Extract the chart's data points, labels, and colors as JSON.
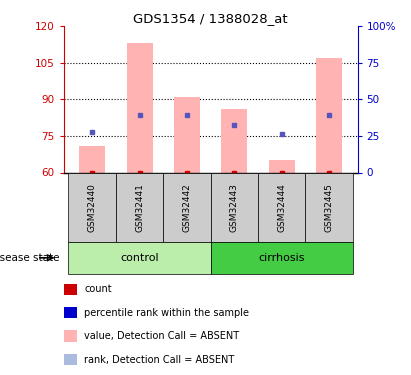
{
  "title": "GDS1354 / 1388028_at",
  "samples": [
    "GSM32440",
    "GSM32441",
    "GSM32442",
    "GSM32443",
    "GSM32444",
    "GSM32445"
  ],
  "groups": [
    "control",
    "control",
    "control",
    "cirrhosis",
    "cirrhosis",
    "cirrhosis"
  ],
  "ylim_left": [
    60,
    120
  ],
  "ylim_right": [
    0,
    100
  ],
  "yticks_left": [
    60,
    75,
    90,
    105,
    120
  ],
  "yticks_right": [
    0,
    25,
    50,
    75,
    100
  ],
  "ytick_labels_right": [
    "0",
    "25",
    "50",
    "75",
    "100%"
  ],
  "bar_bottom": 60,
  "pink_bar_tops": [
    71,
    113,
    91,
    86,
    65,
    107
  ],
  "blue_dot_y": [
    76.5,
    83.5,
    83.5,
    79.5,
    76.0,
    83.5
  ],
  "pink_bar_color": "#FFB3B3",
  "blue_dot_color": "#5555BB",
  "red_dot_color": "#CC0000",
  "control_color": "#BBEEAA",
  "cirrhosis_color": "#44CC44",
  "sample_box_color": "#CCCCCC",
  "background_color": "#FFFFFF",
  "axis_left_color": "#CC0000",
  "axis_right_color": "#0000CC",
  "bar_width": 0.55,
  "dotted_line_y": [
    75,
    90,
    105
  ],
  "legend_labels": [
    "count",
    "percentile rank within the sample",
    "value, Detection Call = ABSENT",
    "rank, Detection Call = ABSENT"
  ],
  "legend_colors": [
    "#CC0000",
    "#0000CC",
    "#FFB3B3",
    "#AABBDD"
  ]
}
